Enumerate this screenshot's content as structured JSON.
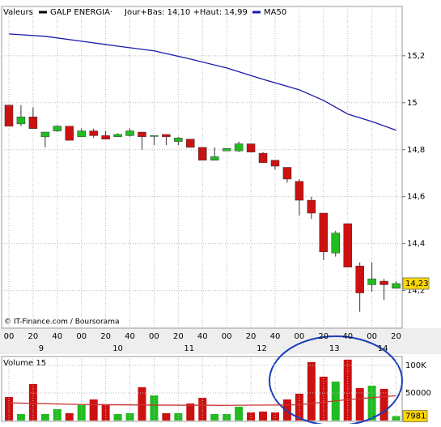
{
  "chart_data": [
    {
      "type": "candlestick",
      "legend": {
        "label": "Valeurs",
        "security": "GALP ENERGIA·",
        "range": "Jour+Bas: 14,10 +Haut: 14,99"
      },
      "credit": "© IT-Finance.com / Boursorama",
      "x": [
        0,
        1,
        2,
        3,
        4,
        5,
        6,
        7,
        8,
        9,
        10,
        11,
        12,
        13,
        14,
        15,
        16,
        17,
        18,
        19,
        20,
        21,
        22,
        23,
        24,
        25,
        26,
        27,
        28,
        29,
        30,
        31,
        32
      ],
      "open": [
        14.99,
        14.91,
        14.94,
        14.855,
        14.88,
        14.9,
        14.855,
        14.88,
        14.86,
        14.855,
        14.86,
        14.875,
        14.86,
        14.865,
        14.835,
        14.845,
        14.81,
        14.755,
        14.795,
        14.795,
        14.825,
        14.785,
        14.755,
        14.725,
        14.665,
        14.585,
        14.53,
        14.36,
        14.485,
        14.305,
        14.225,
        14.24,
        14.21
      ],
      "close": [
        14.9,
        14.94,
        14.89,
        14.875,
        14.9,
        14.84,
        14.88,
        14.86,
        14.845,
        14.865,
        14.88,
        14.855,
        14.86,
        14.855,
        14.85,
        14.81,
        14.755,
        14.77,
        14.805,
        14.825,
        14.79,
        14.745,
        14.73,
        14.675,
        14.585,
        14.53,
        14.365,
        14.445,
        14.3,
        14.19,
        14.25,
        14.225,
        14.23
      ],
      "high": [
        14.99,
        14.99,
        14.98,
        14.875,
        14.905,
        14.9,
        14.89,
        14.89,
        14.88,
        14.87,
        14.89,
        14.875,
        14.86,
        14.865,
        14.855,
        14.845,
        14.81,
        14.81,
        14.805,
        14.835,
        14.825,
        14.79,
        14.755,
        14.725,
        14.675,
        14.6,
        14.53,
        14.455,
        14.485,
        14.32,
        14.32,
        14.25,
        14.24
      ],
      "low": [
        14.9,
        14.9,
        14.89,
        14.81,
        14.875,
        14.84,
        14.855,
        14.85,
        14.845,
        14.855,
        14.855,
        14.8,
        14.82,
        14.82,
        14.82,
        14.81,
        14.755,
        14.755,
        14.795,
        14.79,
        14.79,
        14.745,
        14.715,
        14.66,
        14.52,
        14.505,
        14.33,
        14.345,
        14.3,
        14.11,
        14.195,
        14.16,
        14.21
      ],
      "up_color": "#22bb22",
      "down_color": "#cc1111",
      "ma50": {
        "name": "MA50",
        "color": "#1a1aa8",
        "x": [
          0,
          3,
          6,
          9,
          12,
          15,
          18,
          21,
          24,
          26,
          28,
          30,
          32
        ],
        "values": [
          15.293,
          15.283,
          15.262,
          15.241,
          15.221,
          15.186,
          15.148,
          15.1,
          15.055,
          15.01,
          14.952,
          14.92,
          14.883
        ]
      },
      "last": {
        "value": 14.23,
        "label": "14,23"
      },
      "xlim": [
        -0.6,
        32.5
      ],
      "xticks": [
        {
          "value": 0,
          "label": "00"
        },
        {
          "value": 2,
          "label": "20"
        },
        {
          "value": 4,
          "label": "40"
        },
        {
          "value": 6,
          "label": "00"
        },
        {
          "value": 8,
          "label": "20"
        },
        {
          "value": 10,
          "label": "40"
        },
        {
          "value": 12,
          "label": "00"
        },
        {
          "value": 14,
          "label": "20"
        },
        {
          "value": 16,
          "label": "40"
        },
        {
          "value": 18,
          "label": "00"
        },
        {
          "value": 20,
          "label": "20"
        },
        {
          "value": 22,
          "label": "40"
        },
        {
          "value": 24,
          "label": "00"
        },
        {
          "value": 26,
          "label": "20"
        },
        {
          "value": 28,
          "label": "40"
        },
        {
          "value": 30,
          "label": "00"
        },
        {
          "value": 32,
          "label": "20"
        }
      ],
      "day_labels": [
        {
          "value": 2.67,
          "label": "9"
        },
        {
          "value": 9,
          "label": "10"
        },
        {
          "value": 14.9,
          "label": "11"
        },
        {
          "value": 20.9,
          "label": "12"
        },
        {
          "value": 26.9,
          "label": "13"
        },
        {
          "value": 30.9,
          "label": "14"
        }
      ],
      "ylim": [
        14.04,
        15.41
      ],
      "yticks": [
        {
          "value": 14.2,
          "label": "14,2"
        },
        {
          "value": 14.4,
          "label": "14,4"
        },
        {
          "value": 14.6,
          "label": "14,6"
        },
        {
          "value": 14.8,
          "label": "14,8"
        },
        {
          "value": 15,
          "label": "15"
        },
        {
          "value": 15.2,
          "label": "15,2"
        }
      ],
      "grid": true
    },
    {
      "type": "bar",
      "title": "Volume 15",
      "values": [
        42600,
        11800,
        66200,
        11800,
        20600,
        13200,
        27900,
        38200,
        27900,
        11800,
        13200,
        60300,
        45600,
        13200,
        13200,
        30900,
        41200,
        11800,
        11800,
        25000,
        14700,
        16200,
        14700,
        38200,
        48500,
        105900,
        79400,
        70600,
        110300,
        58800,
        63200,
        57400,
        7981
      ],
      "last": {
        "value": 7981,
        "label": "7981"
      },
      "ma": {
        "color": "#cc3333",
        "x": [
          0,
          6,
          12,
          18,
          24,
          28,
          32
        ],
        "values": [
          32000,
          29000,
          28000,
          27500,
          28500,
          38000,
          45000
        ]
      },
      "ylim": [
        0,
        116000
      ],
      "yticks": [
        50000,
        {
          "value": 100000,
          "label": "100K"
        }
      ]
    }
  ]
}
